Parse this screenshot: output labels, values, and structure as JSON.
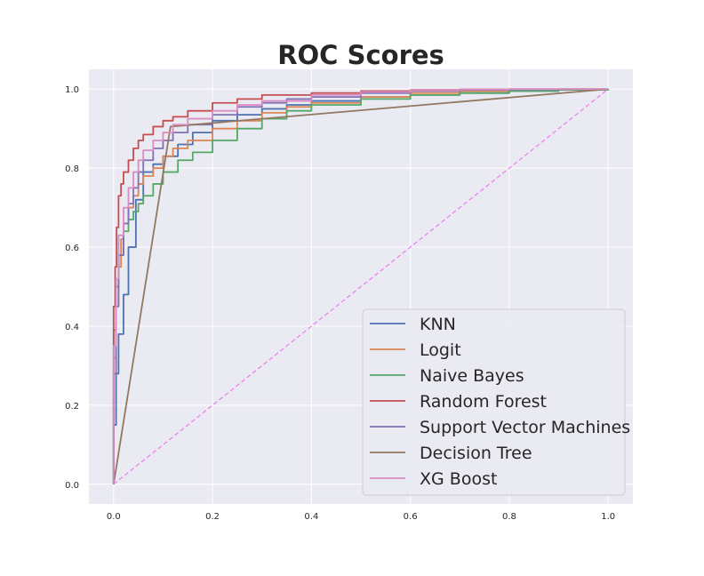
{
  "chart_data": {
    "type": "line",
    "title": "ROC Scores",
    "xlabel": "",
    "ylabel": "",
    "xlim": [
      -0.05,
      1.05
    ],
    "ylim": [
      -0.05,
      1.05
    ],
    "x_ticks": [
      "0.0",
      "0.2",
      "0.4",
      "0.6",
      "0.8",
      "1.0"
    ],
    "y_ticks": [
      "0.0",
      "0.2",
      "0.4",
      "0.6",
      "0.8",
      "1.0"
    ],
    "grid": true,
    "legend_position": "lower-right",
    "series": [
      {
        "name": "KNN",
        "color": "#4c72b0",
        "x": [
          0,
          0,
          0.005,
          0.01,
          0.02,
          0.03,
          0.045,
          0.06,
          0.08,
          0.1,
          0.13,
          0.16,
          0.2,
          0.25,
          0.3,
          0.35,
          0.4,
          0.5,
          0.6,
          0.7,
          0.8,
          0.9,
          1.0
        ],
        "y": [
          0,
          0.15,
          0.28,
          0.38,
          0.48,
          0.6,
          0.72,
          0.79,
          0.81,
          0.83,
          0.86,
          0.89,
          0.92,
          0.935,
          0.95,
          0.96,
          0.97,
          0.98,
          0.985,
          0.99,
          0.995,
          0.998,
          1.0
        ]
      },
      {
        "name": "Logit",
        "color": "#dd8452",
        "x": [
          0,
          0,
          0.005,
          0.01,
          0.015,
          0.02,
          0.03,
          0.04,
          0.05,
          0.06,
          0.08,
          0.1,
          0.12,
          0.15,
          0.2,
          0.25,
          0.3,
          0.35,
          0.4,
          0.5,
          0.6,
          0.7,
          0.8,
          0.9,
          1.0
        ],
        "y": [
          0,
          0.32,
          0.45,
          0.55,
          0.62,
          0.66,
          0.7,
          0.73,
          0.76,
          0.78,
          0.8,
          0.83,
          0.85,
          0.87,
          0.9,
          0.92,
          0.94,
          0.955,
          0.965,
          0.98,
          0.99,
          0.995,
          0.998,
          0.999,
          1.0
        ]
      },
      {
        "name": "Naive Bayes",
        "color": "#55a868",
        "x": [
          0,
          0,
          0.005,
          0.01,
          0.02,
          0.03,
          0.04,
          0.05,
          0.06,
          0.08,
          0.1,
          0.13,
          0.16,
          0.2,
          0.25,
          0.3,
          0.35,
          0.4,
          0.5,
          0.6,
          0.7,
          0.8,
          0.9,
          1.0
        ],
        "y": [
          0,
          0.39,
          0.5,
          0.58,
          0.64,
          0.67,
          0.69,
          0.71,
          0.73,
          0.76,
          0.79,
          0.82,
          0.84,
          0.87,
          0.9,
          0.925,
          0.945,
          0.96,
          0.975,
          0.985,
          0.99,
          0.995,
          0.998,
          1.0
        ]
      },
      {
        "name": "Random Forest",
        "color": "#c44e52",
        "x": [
          0,
          0,
          0.003,
          0.006,
          0.01,
          0.015,
          0.02,
          0.03,
          0.04,
          0.05,
          0.06,
          0.08,
          0.1,
          0.12,
          0.15,
          0.2,
          0.25,
          0.3,
          0.4,
          0.5,
          0.6,
          0.7,
          0.8,
          0.9,
          1.0
        ],
        "y": [
          0,
          0.45,
          0.55,
          0.65,
          0.73,
          0.76,
          0.79,
          0.82,
          0.85,
          0.87,
          0.885,
          0.905,
          0.92,
          0.93,
          0.945,
          0.965,
          0.975,
          0.985,
          0.99,
          0.995,
          0.998,
          0.999,
          1.0,
          1.0,
          1.0
        ]
      },
      {
        "name": "Support Vector Machines",
        "color": "#8172b3",
        "x": [
          0,
          0,
          0.005,
          0.01,
          0.02,
          0.03,
          0.04,
          0.05,
          0.06,
          0.08,
          0.1,
          0.12,
          0.15,
          0.2,
          0.25,
          0.3,
          0.35,
          0.4,
          0.5,
          0.6,
          0.7,
          0.8,
          0.9,
          1.0
        ],
        "y": [
          0,
          0.28,
          0.45,
          0.58,
          0.66,
          0.71,
          0.75,
          0.79,
          0.82,
          0.85,
          0.87,
          0.89,
          0.91,
          0.935,
          0.955,
          0.965,
          0.975,
          0.98,
          0.99,
          0.995,
          0.998,
          0.999,
          1.0,
          1.0
        ]
      },
      {
        "name": "Decision Tree",
        "color": "#937860",
        "x": [
          0,
          0.115,
          1.0
        ],
        "y": [
          0,
          0.905,
          1.0
        ]
      },
      {
        "name": "XG Boost",
        "color": "#da8bc3",
        "x": [
          0,
          0,
          0.005,
          0.01,
          0.02,
          0.03,
          0.04,
          0.05,
          0.06,
          0.08,
          0.1,
          0.12,
          0.15,
          0.2,
          0.25,
          0.3,
          0.4,
          0.5,
          0.6,
          0.7,
          0.8,
          0.9,
          1.0
        ],
        "y": [
          0,
          0.35,
          0.52,
          0.63,
          0.7,
          0.75,
          0.79,
          0.82,
          0.845,
          0.87,
          0.89,
          0.91,
          0.925,
          0.945,
          0.96,
          0.97,
          0.985,
          0.993,
          0.997,
          0.999,
          1.0,
          1.0,
          1.0
        ]
      }
    ],
    "reference_line": {
      "color": "#ee82ee",
      "style": "dashed",
      "x": [
        0,
        1
      ],
      "y": [
        0,
        1
      ]
    }
  }
}
